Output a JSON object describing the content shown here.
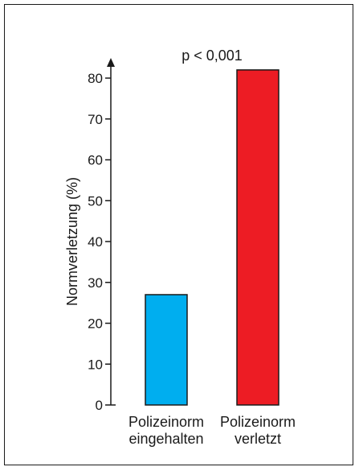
{
  "chart_data": {
    "type": "bar",
    "categories": [
      [
        "Polizeinorm",
        "eingehalten"
      ],
      [
        "Polizeinorm",
        "verletzt"
      ]
    ],
    "values": [
      27,
      82
    ],
    "colors": [
      "#00aeef",
      "#ed1c24"
    ],
    "ylabel": "Normverletzung (%)",
    "xlabel": "",
    "title": "",
    "ylim": [
      0,
      80
    ],
    "yticks": [
      0,
      10,
      20,
      30,
      40,
      50,
      60,
      70,
      80
    ],
    "annotation": "p < 0,001",
    "grid": false
  }
}
